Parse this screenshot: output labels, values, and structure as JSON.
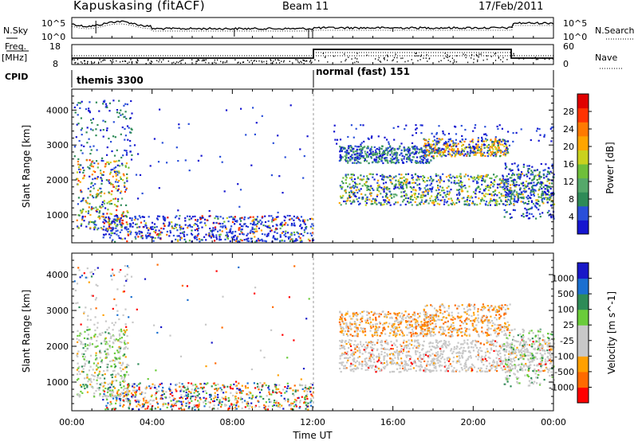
{
  "header": {
    "station": "Kapuskasing (fitACF)",
    "beam": "Beam 11",
    "date": "17/Feb/2011"
  },
  "panels": {
    "nsky": {
      "label": "N.Sky",
      "ticks_left": [
        "10^5",
        "10^0"
      ],
      "right_label": "N.Search",
      "ticks_right": [
        "10^5",
        "10^0"
      ]
    },
    "freq": {
      "label_line1": "Freq.",
      "label_line2": "[MHz]",
      "ticks_left": [
        "18",
        "8"
      ],
      "right_label": "Nave",
      "ticks_right": [
        "60",
        "0"
      ]
    },
    "cpid": {
      "label": "CPID",
      "modes": [
        {
          "name": "themis 3300",
          "start_hour": 0
        },
        {
          "name": "normal (fast) 151",
          "start_hour": 12
        }
      ]
    }
  },
  "colors": {
    "power": [
      "#1515d0",
      "#2a4fd9",
      "#2e8b57",
      "#55a86a",
      "#6fbf3a",
      "#c9d21e",
      "#ffa500",
      "#ff7a00",
      "#ff3300",
      "#e00000"
    ],
    "velocity": [
      "#ff0000",
      "#ff6a00",
      "#ffa000",
      "#c8c8c8",
      "#c8c8c8",
      "#6acc3a",
      "#2e8b57",
      "#1a6fd0",
      "#1818c8"
    ]
  },
  "chart_data": [
    {
      "type": "heatmap",
      "name": "power",
      "ylabel": "Slant Range [km]",
      "xlabel": "",
      "x_ticks": [
        "00:00",
        "04:00",
        "08:00",
        "12:00",
        "16:00",
        "20:00",
        "00:00"
      ],
      "x_range_hours": [
        0,
        24
      ],
      "y_ticks": [
        1000,
        2000,
        3000,
        4000
      ],
      "y_range": [
        200,
        4600
      ],
      "colorbar": {
        "label": "Power [dB]",
        "range": [
          0,
          32
        ],
        "ticks": [
          4,
          8,
          12,
          16,
          20,
          24,
          28
        ]
      }
    },
    {
      "type": "heatmap",
      "name": "velocity",
      "ylabel": "Slant Range [km]",
      "xlabel": "Time UT",
      "x_ticks": [
        "00:00",
        "04:00",
        "08:00",
        "12:00",
        "16:00",
        "20:00",
        "00:00"
      ],
      "x_range_hours": [
        0,
        24
      ],
      "y_ticks": [
        1000,
        2000,
        3000,
        4000
      ],
      "y_range": [
        200,
        4600
      ],
      "colorbar": {
        "label": "Velocity [m s^-1]",
        "ticks": [
          -1000,
          -500,
          -100,
          -25,
          25,
          100,
          500,
          1000
        ]
      }
    }
  ]
}
